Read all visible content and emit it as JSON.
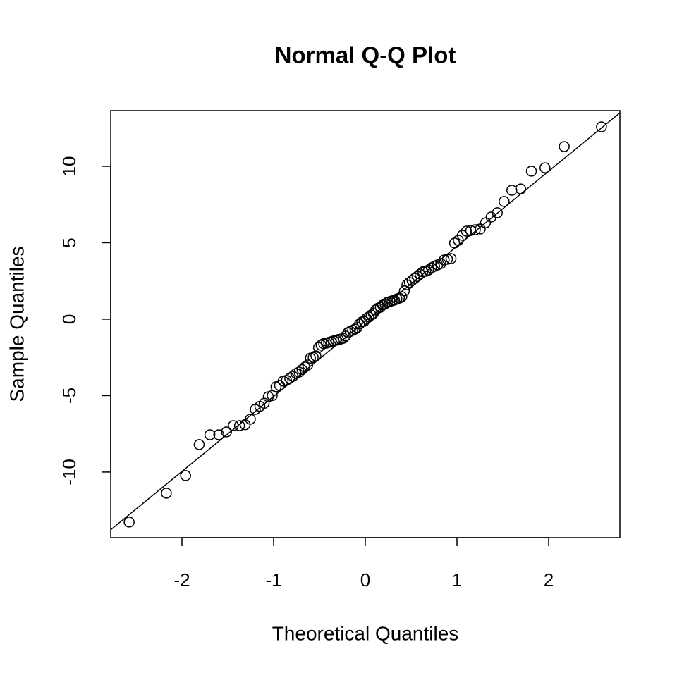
{
  "chart_data": {
    "type": "scatter",
    "title": "Normal Q-Q Plot",
    "x_label": "Theoretical Quantiles",
    "y_label": "Sample Quantiles",
    "xlim": [
      -2.777,
      2.777
    ],
    "ylim": [
      -14.29,
      13.64
    ],
    "xticks": [
      -2,
      -1,
      0,
      1,
      2
    ],
    "yticks": [
      -10,
      -5,
      0,
      5,
      10
    ],
    "color": "#000000",
    "reference_line": {
      "intercept": -0.14,
      "slope": 4.91
    },
    "series": [
      {
        "x": [
          -2.576,
          -2.17,
          -1.96,
          -1.812,
          -1.695,
          -1.598,
          -1.514,
          -1.44,
          -1.372,
          -1.311,
          -1.254,
          -1.2,
          -1.15,
          -1.103,
          -1.058,
          -1.015,
          -0.974,
          -0.935,
          -0.896,
          -0.86,
          -0.824,
          -0.789,
          -0.755,
          -0.722,
          -0.69,
          -0.659,
          -0.628,
          -0.598,
          -0.568,
          -0.539,
          -0.51,
          -0.482,
          -0.454,
          -0.426,
          -0.399,
          -0.372,
          -0.345,
          -0.319,
          -0.292,
          -0.266,
          -0.24,
          -0.215,
          -0.189,
          -0.164,
          -0.138,
          -0.113,
          -0.088,
          -0.063,
          -0.038,
          -0.013,
          0.013,
          0.038,
          0.063,
          0.088,
          0.113,
          0.138,
          0.164,
          0.189,
          0.215,
          0.24,
          0.266,
          0.292,
          0.319,
          0.345,
          0.372,
          0.399,
          0.426,
          0.454,
          0.482,
          0.51,
          0.539,
          0.568,
          0.598,
          0.628,
          0.659,
          0.69,
          0.722,
          0.755,
          0.789,
          0.824,
          0.86,
          0.896,
          0.935,
          0.974,
          1.015,
          1.058,
          1.103,
          1.15,
          1.2,
          1.254,
          1.311,
          1.372,
          1.44,
          1.514,
          1.598,
          1.695,
          1.812,
          1.96,
          2.17,
          2.576
        ],
        "values": [
          -13.27,
          -11.38,
          -10.23,
          -8.2,
          -7.56,
          -7.56,
          -7.37,
          -6.96,
          -6.96,
          -6.9,
          -6.54,
          -5.9,
          -5.7,
          -5.5,
          -5.07,
          -5.0,
          -4.42,
          -4.33,
          -4.05,
          -4.0,
          -3.87,
          -3.73,
          -3.55,
          -3.46,
          -3.3,
          -3.13,
          -3.0,
          -2.55,
          -2.5,
          -2.4,
          -1.85,
          -1.7,
          -1.6,
          -1.57,
          -1.52,
          -1.47,
          -1.42,
          -1.38,
          -1.33,
          -1.3,
          -1.25,
          -1.1,
          -0.88,
          -0.8,
          -0.73,
          -0.65,
          -0.55,
          -0.32,
          -0.18,
          -0.14,
          0.05,
          0.14,
          0.27,
          0.37,
          0.6,
          0.72,
          0.78,
          0.92,
          1.0,
          1.1,
          1.15,
          1.2,
          1.25,
          1.32,
          1.38,
          1.47,
          1.85,
          2.25,
          2.4,
          2.53,
          2.67,
          2.8,
          2.95,
          3.1,
          3.13,
          3.22,
          3.36,
          3.46,
          3.55,
          3.64,
          3.87,
          3.92,
          3.96,
          4.98,
          5.16,
          5.48,
          5.76,
          5.8,
          5.85,
          5.9,
          6.3,
          6.68,
          6.96,
          7.7,
          8.43,
          8.52,
          9.68,
          9.9,
          11.29,
          12.58
        ]
      }
    ]
  }
}
